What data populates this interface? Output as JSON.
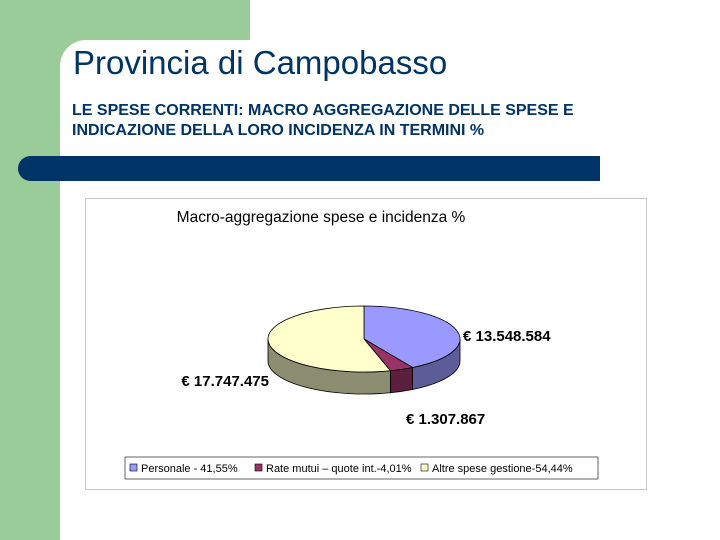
{
  "slide": {
    "title": "Provincia di Campobasso",
    "subtitle": "LE SPESE CORRENTI: MACRO AGGREGAZIONE DELLE SPESE E INDICAZIONE DELLA LORO INCIDENZA IN TERMINI %"
  },
  "colors": {
    "green": "#99cc99",
    "navy": "#003366"
  },
  "chart_data": {
    "type": "pie",
    "style": "3d",
    "title": "Macro-aggregazione spese e incidenza %",
    "legend_position": "bottom",
    "slices": [
      {
        "label": "Personale - 41,55%",
        "value": 13548584,
        "percent": 41.55,
        "data_label": "€ 13.548.584",
        "color": "#9999ff"
      },
      {
        "label": "Rate mutui – quote int.-4,01%",
        "value": 1307867,
        "percent": 4.01,
        "data_label": "€ 1.307.867",
        "color": "#993366"
      },
      {
        "label": "Altre spese gestione-54,44%",
        "value": 17747475,
        "percent": 54.44,
        "data_label": "€ 17.747.475",
        "color": "#ffffcc"
      }
    ]
  }
}
